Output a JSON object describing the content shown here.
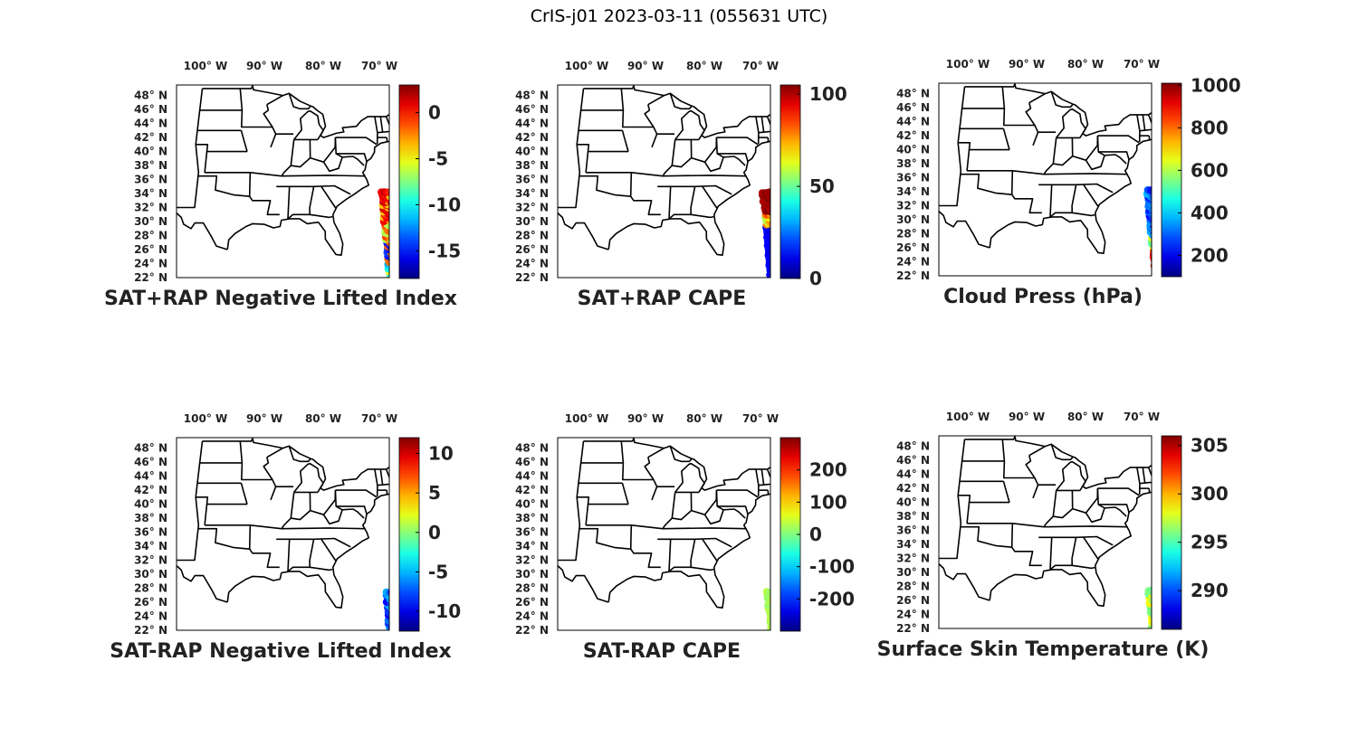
{
  "figure": {
    "title": "CrIS-j01 2023-03-11 (055631 UTC)"
  },
  "lon_labels": [
    "100° W",
    "90° W",
    "80° W",
    "70° W"
  ],
  "lat_labels": [
    "48° N",
    "46° N",
    "44° N",
    "42° N",
    "40° N",
    "38° N",
    "36° N",
    "34° N",
    "32° N",
    "30° N",
    "28° N",
    "26° N",
    "24° N",
    "22° N"
  ],
  "panels": [
    {
      "title": "SAT+RAP Negative Lifted Index",
      "colorbar": {
        "colormap": "jet",
        "min": -18,
        "max": 3,
        "ticks": [
          0,
          -5,
          -10,
          -15
        ],
        "tick_labels": [
          "0",
          "-5",
          "-10",
          "-15"
        ]
      },
      "swath": {
        "lon_range": [
          -73.5,
          -68.5
        ],
        "lat_range": [
          22,
          34.5
        ],
        "pattern": "mixed_warm_top_blue_bottom"
      }
    },
    {
      "title": "SAT+RAP CAPE",
      "colorbar": {
        "colormap": "jet",
        "min": 0,
        "max": 105,
        "ticks": [
          100,
          50,
          0
        ],
        "tick_labels": [
          "100",
          "50",
          "0"
        ]
      },
      "swath": {
        "lon_range": [
          -73.5,
          -68.5
        ],
        "lat_range": [
          22,
          34.5
        ],
        "pattern": "low_with_high_strip_top"
      }
    },
    {
      "title": "Cloud Press (hPa)",
      "colorbar": {
        "colormap": "jet",
        "min": 100,
        "max": 1010,
        "ticks": [
          1000,
          800,
          600,
          400,
          200
        ],
        "tick_labels": [
          "1000",
          "800",
          "600",
          "400",
          "200"
        ]
      },
      "swath": {
        "lon_range": [
          -73,
          -68.5
        ],
        "lat_range": [
          22,
          34.5
        ],
        "pattern": "blue_top_orange_bottom"
      }
    },
    {
      "title": "SAT-RAP Negative Lifted Index",
      "colorbar": {
        "colormap": "jet",
        "min": -12.5,
        "max": 12,
        "ticks": [
          10,
          5,
          0,
          -5,
          -10
        ],
        "tick_labels": [
          "10",
          "5",
          "0",
          "-5",
          "-10"
        ]
      },
      "swath": {
        "lon_range": [
          -73.5,
          -68.5
        ],
        "lat_range": [
          22,
          27.5
        ],
        "pattern": "blue_patch"
      }
    },
    {
      "title": "SAT-RAP CAPE",
      "colorbar": {
        "colormap": "jet",
        "min": -300,
        "max": 300,
        "ticks": [
          200,
          100,
          0,
          -100,
          -200
        ],
        "tick_labels": [
          "200",
          "100",
          "0",
          "-100",
          "-200"
        ]
      },
      "swath": {
        "lon_range": [
          -73.5,
          -68.5
        ],
        "lat_range": [
          22,
          27.5
        ],
        "pattern": "uniform_green"
      }
    },
    {
      "title": "Surface Skin Temperature (K)",
      "colorbar": {
        "colormap": "jet",
        "min": 286,
        "max": 306,
        "ticks": [
          305,
          300,
          295,
          290
        ],
        "tick_labels": [
          "305",
          "300",
          "295",
          "290"
        ]
      },
      "swath": {
        "lon_range": [
          -73.5,
          -68.5
        ],
        "lat_range": [
          22,
          27.5
        ],
        "pattern": "yellow_green_patch"
      }
    }
  ]
}
